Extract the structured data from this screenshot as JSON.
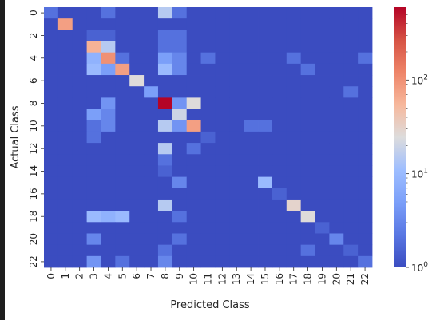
{
  "chart_data": {
    "type": "heatmap",
    "xlabel": "Predicted Class",
    "ylabel": "Actual Class",
    "x_tick_labels": [
      "0",
      "1",
      "2",
      "3",
      "4",
      "5",
      "6",
      "7",
      "8",
      "9",
      "10",
      "11",
      "12",
      "13",
      "14",
      "15",
      "16",
      "17",
      "18",
      "19",
      "20",
      "21",
      "22"
    ],
    "y_tick_labels": [
      "0",
      "2",
      "4",
      "6",
      "8",
      "10",
      "12",
      "14",
      "16",
      "18",
      "20",
      "22"
    ],
    "y_tick_values": [
      0,
      2,
      4,
      6,
      8,
      10,
      12,
      14,
      16,
      18,
      20,
      22
    ],
    "colormap": "coolwarm",
    "color_scale": "log",
    "vmin": 1,
    "vmax": 600,
    "colorbar_ticks": [
      {
        "value": 1,
        "base": "10",
        "exp": "0"
      },
      {
        "value": 10,
        "base": "10",
        "exp": "1"
      },
      {
        "value": 100,
        "base": "10",
        "exp": "2"
      }
    ],
    "colorbar_minor_ticks": [
      2,
      3,
      4,
      5,
      6,
      7,
      8,
      9,
      20,
      30,
      40,
      50,
      60,
      70,
      80,
      90,
      200,
      300,
      400,
      500
    ],
    "rows": 23,
    "cols": 23,
    "default_value": 1,
    "cells": [
      [
        0,
        0,
        2
      ],
      [
        0,
        4,
        2
      ],
      [
        0,
        8,
        15
      ],
      [
        0,
        9,
        2
      ],
      [
        1,
        1,
        80
      ],
      [
        2,
        3,
        1.5
      ],
      [
        2,
        4,
        1.5
      ],
      [
        2,
        8,
        2
      ],
      [
        2,
        9,
        2
      ],
      [
        3,
        3,
        60
      ],
      [
        3,
        4,
        15
      ],
      [
        3,
        8,
        2
      ],
      [
        3,
        9,
        2
      ],
      [
        4,
        3,
        8
      ],
      [
        4,
        4,
        100
      ],
      [
        4,
        5,
        2
      ],
      [
        4,
        8,
        5
      ],
      [
        4,
        9,
        3
      ],
      [
        4,
        11,
        2
      ],
      [
        4,
        17,
        2
      ],
      [
        4,
        22,
        2
      ],
      [
        5,
        3,
        10
      ],
      [
        5,
        4,
        5
      ],
      [
        5,
        5,
        80
      ],
      [
        5,
        8,
        10
      ],
      [
        5,
        9,
        3
      ],
      [
        5,
        18,
        2
      ],
      [
        6,
        6,
        25
      ],
      [
        7,
        7,
        5
      ],
      [
        7,
        21,
        2
      ],
      [
        8,
        4,
        4
      ],
      [
        8,
        8,
        600
      ],
      [
        8,
        9,
        4
      ],
      [
        8,
        10,
        25
      ],
      [
        9,
        3,
        5
      ],
      [
        9,
        4,
        3
      ],
      [
        9,
        9,
        20
      ],
      [
        10,
        3,
        2
      ],
      [
        10,
        4,
        3
      ],
      [
        10,
        8,
        15
      ],
      [
        10,
        9,
        4
      ],
      [
        10,
        10,
        80
      ],
      [
        10,
        14,
        2
      ],
      [
        10,
        15,
        2
      ],
      [
        11,
        3,
        2
      ],
      [
        11,
        11,
        1.5
      ],
      [
        12,
        8,
        15
      ],
      [
        12,
        10,
        2
      ],
      [
        13,
        8,
        2
      ],
      [
        14,
        8,
        1.5
      ],
      [
        15,
        9,
        3
      ],
      [
        15,
        15,
        10
      ],
      [
        16,
        16,
        1.5
      ],
      [
        17,
        8,
        15
      ],
      [
        17,
        17,
        30
      ],
      [
        18,
        3,
        10
      ],
      [
        18,
        4,
        8
      ],
      [
        18,
        5,
        10
      ],
      [
        18,
        9,
        2
      ],
      [
        18,
        18,
        25
      ],
      [
        19,
        19,
        1.5
      ],
      [
        20,
        3,
        3
      ],
      [
        20,
        9,
        2
      ],
      [
        20,
        20,
        3
      ],
      [
        21,
        8,
        2
      ],
      [
        21,
        18,
        2
      ],
      [
        21,
        21,
        1.5
      ],
      [
        22,
        3,
        4
      ],
      [
        22,
        5,
        2
      ],
      [
        22,
        8,
        3
      ],
      [
        22,
        22,
        2
      ]
    ]
  }
}
